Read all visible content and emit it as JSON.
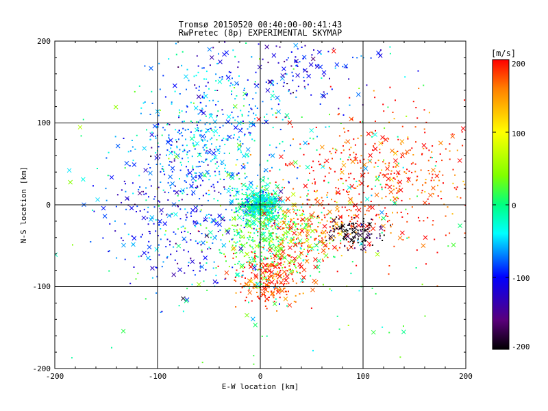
{
  "chart_data": {
    "type": "scatter",
    "title": "Tromsø 20150520 00:40:00-00:41:43",
    "subtitle": "RwPretec (8p) EXPERIMENTAL SKYMAP",
    "xlabel": "E-W location [km]",
    "ylabel": "N-S location [km]",
    "xlim": [
      -200,
      200
    ],
    "ylim": [
      -200,
      200
    ],
    "xticks": [
      "-200",
      "-100",
      "0",
      "100",
      "200"
    ],
    "yticks": [
      "-200",
      "-100",
      "0",
      "100",
      "200"
    ],
    "grid": true,
    "colorbar": {
      "label": "[m/s]",
      "range": [
        -200,
        200
      ],
      "ticks": [
        "200",
        "100",
        "0",
        "-100",
        "-200"
      ]
    },
    "markers": [
      "dot",
      "x"
    ],
    "clusters": [
      {
        "x": 0,
        "y": 0,
        "sx": 10,
        "sy": 10,
        "n": 520,
        "v": -25
      },
      {
        "x": 10,
        "y": -40,
        "sx": 25,
        "sy": 25,
        "n": 420,
        "v": 20
      },
      {
        "x": -50,
        "y": 80,
        "sx": 35,
        "sy": 45,
        "n": 480,
        "v": -60
      },
      {
        "x": 120,
        "y": 30,
        "sx": 55,
        "sy": 45,
        "n": 500,
        "v": 185
      },
      {
        "x": 50,
        "y": -30,
        "sx": 25,
        "sy": 20,
        "n": 200,
        "v": 170
      },
      {
        "x": 10,
        "y": -90,
        "sx": 20,
        "sy": 15,
        "n": 260,
        "v": 185
      },
      {
        "x": 95,
        "y": -35,
        "sx": 15,
        "sy": 10,
        "n": 110,
        "v": -195
      },
      {
        "x": 30,
        "y": 165,
        "sx": 40,
        "sy": 25,
        "n": 150,
        "v": -110
      },
      {
        "x": -80,
        "y": -10,
        "sx": 40,
        "sy": 45,
        "n": 300,
        "v": -100
      },
      {
        "x": 0,
        "y": 0,
        "sx": 110,
        "sy": 110,
        "n": 250,
        "v": 0
      }
    ]
  }
}
